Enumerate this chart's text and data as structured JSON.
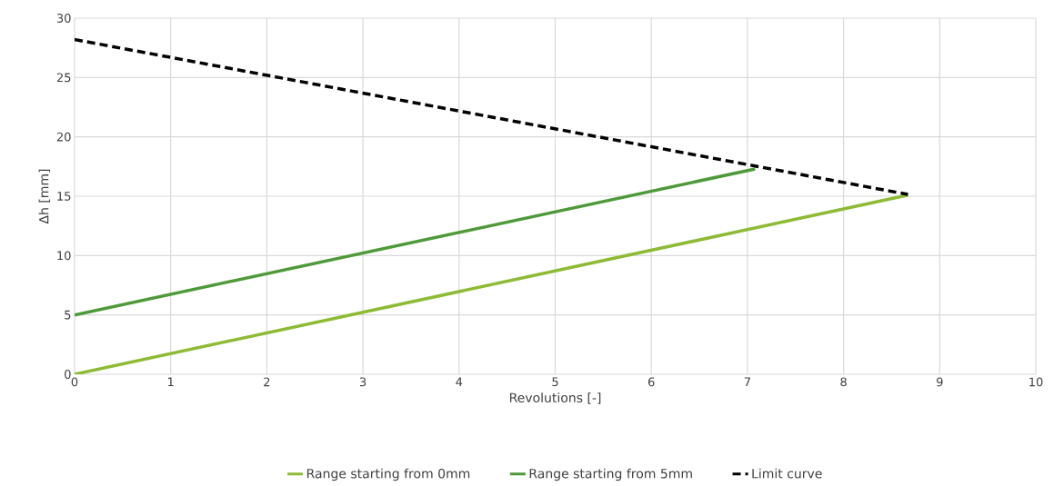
{
  "chart_data": {
    "type": "line",
    "xlabel": "Revolutions [-]",
    "ylabel": "Δh [mm]",
    "xlim": [
      0,
      10
    ],
    "ylim": [
      0,
      30
    ],
    "xticks": [
      0,
      1,
      2,
      3,
      4,
      5,
      6,
      7,
      8,
      9,
      10
    ],
    "yticks": [
      0,
      5,
      10,
      15,
      20,
      25,
      30
    ],
    "grid": true,
    "legend": "bottom",
    "series": [
      {
        "name": "Range starting from 0mm",
        "color": "#8dbb35",
        "line_style": "solid",
        "x": [
          0,
          8.67
        ],
        "values": [
          0,
          15.1
        ]
      },
      {
        "name": "Range starting from 5mm",
        "color": "#4e9a3a",
        "line_style": "solid",
        "x": [
          0,
          7.08
        ],
        "values": [
          5,
          17.3
        ]
      },
      {
        "name": "Limit curve",
        "color": "#000000",
        "line_style": "dashed",
        "x": [
          0,
          8.67
        ],
        "values": [
          28.2,
          15.15
        ]
      }
    ]
  }
}
